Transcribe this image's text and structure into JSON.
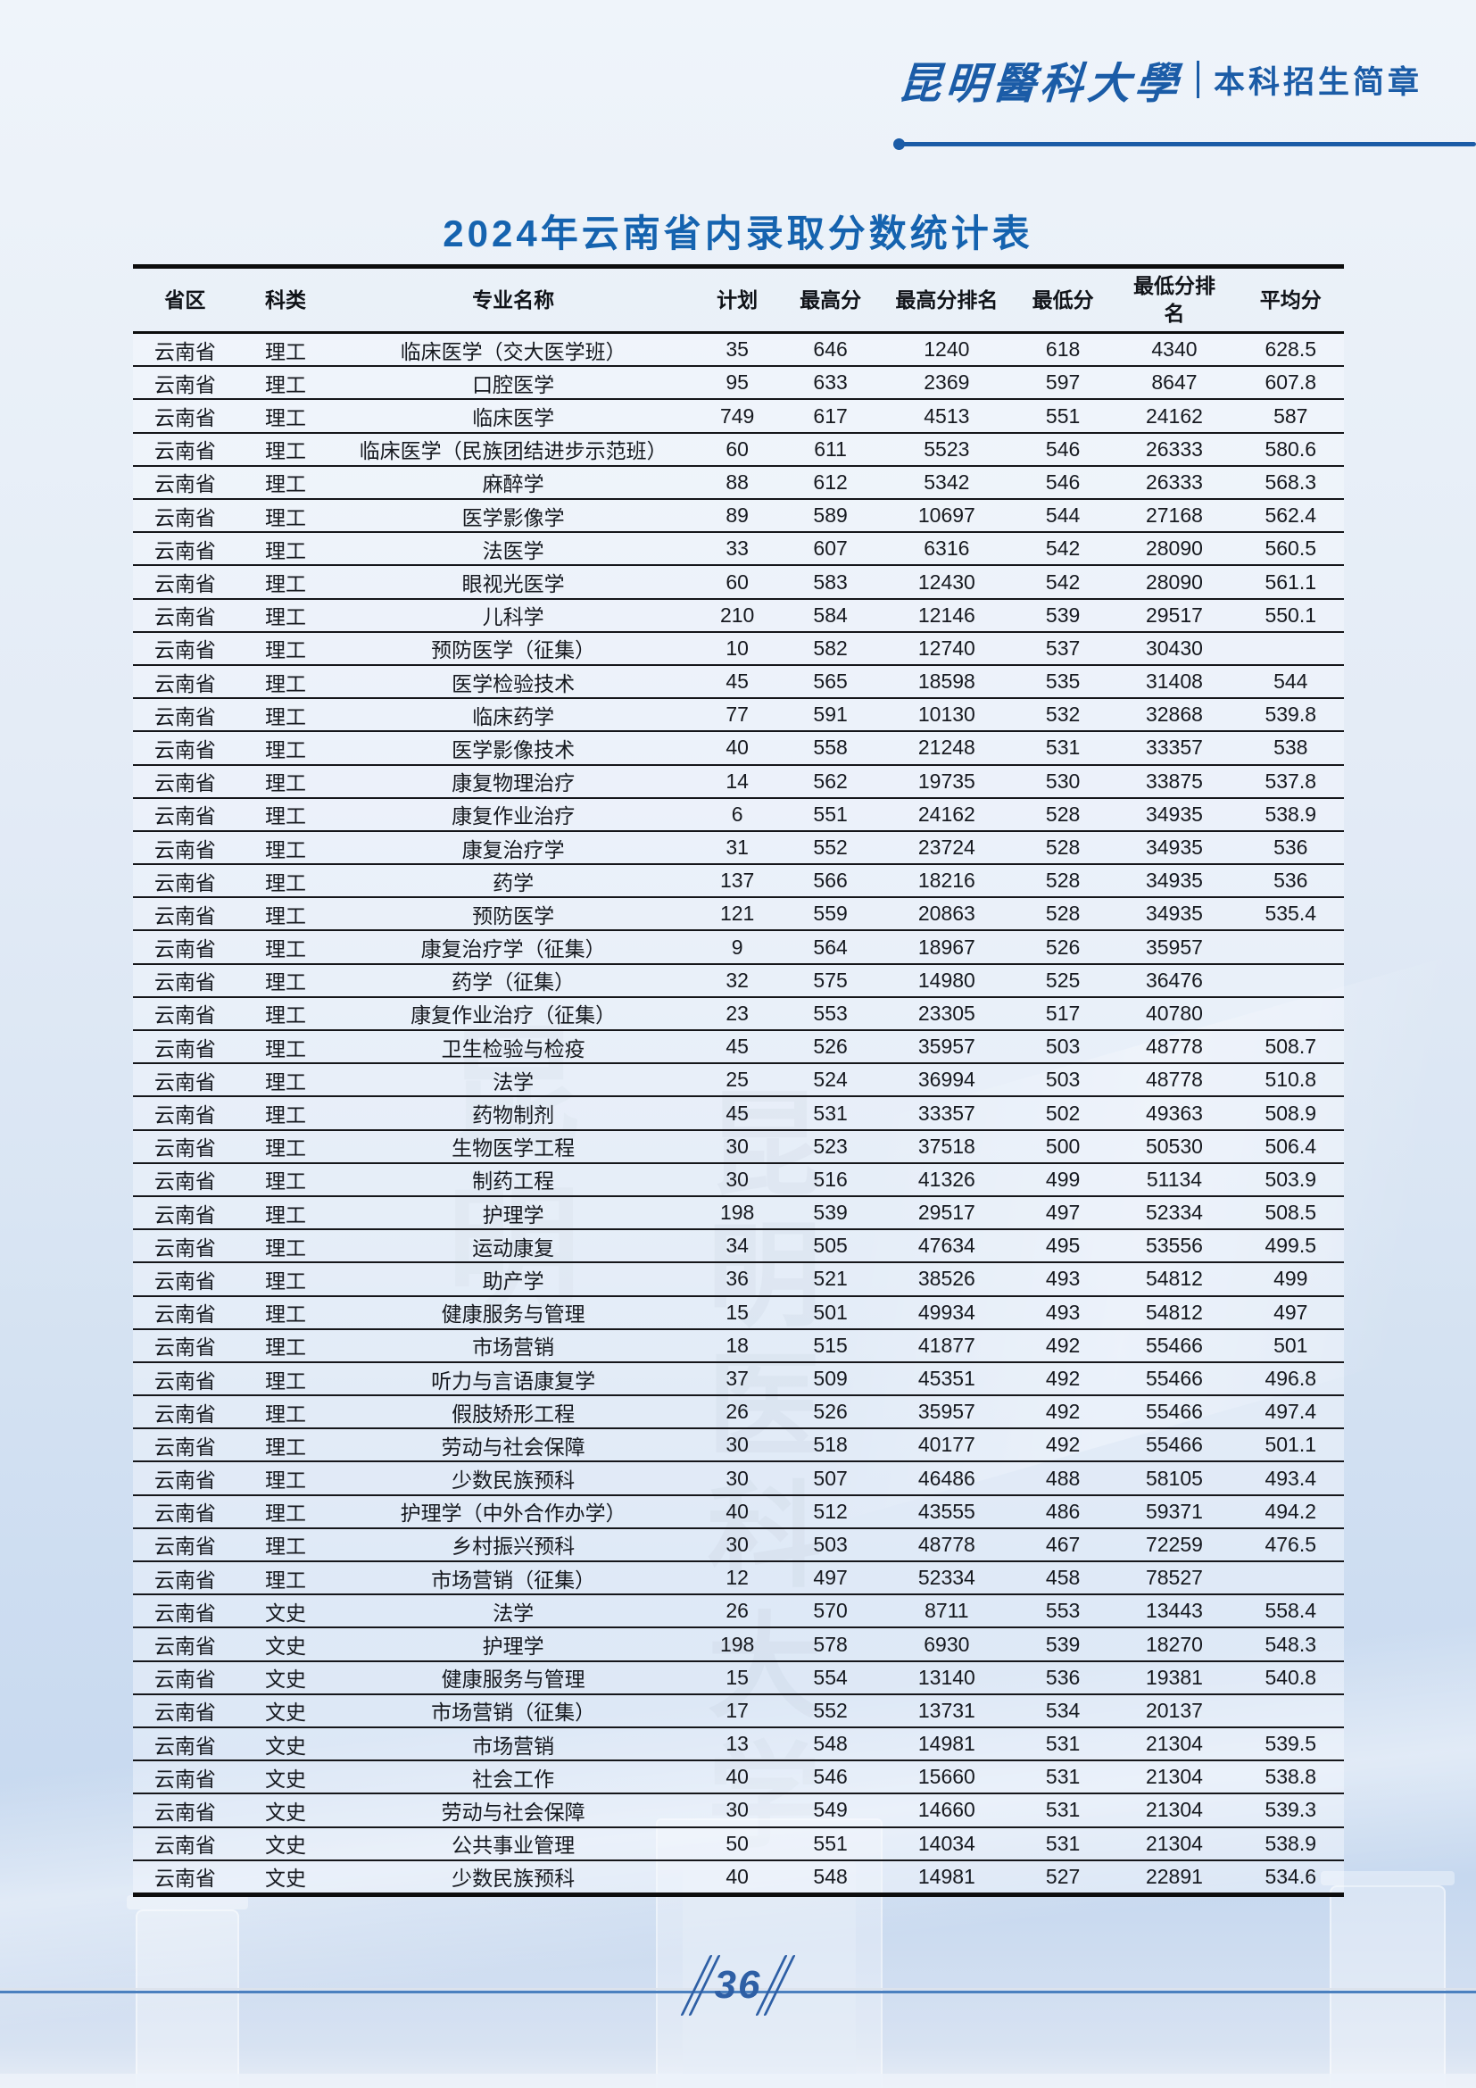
{
  "header": {
    "university_name": "昆明醫科大學",
    "brochure_label": "本科招生简章"
  },
  "title": "2024年云南省内录取分数统计表",
  "watermark": {
    "main_text": "昆明医科大学",
    "side_text": "昆明"
  },
  "colors": {
    "brand_blue": "#1b5ca7",
    "title_blue": "#1563af",
    "footer_line_blue": "#4b80bf",
    "table_border_black": "#0d0d0d"
  },
  "table": {
    "columns": [
      "省区",
      "科类",
      "专业名称",
      "计划",
      "最高分",
      "最高分排名",
      "最低分",
      "最低分排名",
      "平均分"
    ],
    "rows": [
      [
        "云南省",
        "理工",
        "临床医学（交大医学班）",
        "35",
        "646",
        "1240",
        "618",
        "4340",
        "628.5"
      ],
      [
        "云南省",
        "理工",
        "口腔医学",
        "95",
        "633",
        "2369",
        "597",
        "8647",
        "607.8"
      ],
      [
        "云南省",
        "理工",
        "临床医学",
        "749",
        "617",
        "4513",
        "551",
        "24162",
        "587"
      ],
      [
        "云南省",
        "理工",
        "临床医学（民族团结进步示范班）",
        "60",
        "611",
        "5523",
        "546",
        "26333",
        "580.6"
      ],
      [
        "云南省",
        "理工",
        "麻醉学",
        "88",
        "612",
        "5342",
        "546",
        "26333",
        "568.3"
      ],
      [
        "云南省",
        "理工",
        "医学影像学",
        "89",
        "589",
        "10697",
        "544",
        "27168",
        "562.4"
      ],
      [
        "云南省",
        "理工",
        "法医学",
        "33",
        "607",
        "6316",
        "542",
        "28090",
        "560.5"
      ],
      [
        "云南省",
        "理工",
        "眼视光医学",
        "60",
        "583",
        "12430",
        "542",
        "28090",
        "561.1"
      ],
      [
        "云南省",
        "理工",
        "儿科学",
        "210",
        "584",
        "12146",
        "539",
        "29517",
        "550.1"
      ],
      [
        "云南省",
        "理工",
        "预防医学（征集）",
        "10",
        "582",
        "12740",
        "537",
        "30430",
        ""
      ],
      [
        "云南省",
        "理工",
        "医学检验技术",
        "45",
        "565",
        "18598",
        "535",
        "31408",
        "544"
      ],
      [
        "云南省",
        "理工",
        "临床药学",
        "77",
        "591",
        "10130",
        "532",
        "32868",
        "539.8"
      ],
      [
        "云南省",
        "理工",
        "医学影像技术",
        "40",
        "558",
        "21248",
        "531",
        "33357",
        "538"
      ],
      [
        "云南省",
        "理工",
        "康复物理治疗",
        "14",
        "562",
        "19735",
        "530",
        "33875",
        "537.8"
      ],
      [
        "云南省",
        "理工",
        "康复作业治疗",
        "6",
        "551",
        "24162",
        "528",
        "34935",
        "538.9"
      ],
      [
        "云南省",
        "理工",
        "康复治疗学",
        "31",
        "552",
        "23724",
        "528",
        "34935",
        "536"
      ],
      [
        "云南省",
        "理工",
        "药学",
        "137",
        "566",
        "18216",
        "528",
        "34935",
        "536"
      ],
      [
        "云南省",
        "理工",
        "预防医学",
        "121",
        "559",
        "20863",
        "528",
        "34935",
        "535.4"
      ],
      [
        "云南省",
        "理工",
        "康复治疗学（征集）",
        "9",
        "564",
        "18967",
        "526",
        "35957",
        ""
      ],
      [
        "云南省",
        "理工",
        "药学（征集）",
        "32",
        "575",
        "14980",
        "525",
        "36476",
        ""
      ],
      [
        "云南省",
        "理工",
        "康复作业治疗（征集）",
        "23",
        "553",
        "23305",
        "517",
        "40780",
        ""
      ],
      [
        "云南省",
        "理工",
        "卫生检验与检疫",
        "45",
        "526",
        "35957",
        "503",
        "48778",
        "508.7"
      ],
      [
        "云南省",
        "理工",
        "法学",
        "25",
        "524",
        "36994",
        "503",
        "48778",
        "510.8"
      ],
      [
        "云南省",
        "理工",
        "药物制剂",
        "45",
        "531",
        "33357",
        "502",
        "49363",
        "508.9"
      ],
      [
        "云南省",
        "理工",
        "生物医学工程",
        "30",
        "523",
        "37518",
        "500",
        "50530",
        "506.4"
      ],
      [
        "云南省",
        "理工",
        "制药工程",
        "30",
        "516",
        "41326",
        "499",
        "51134",
        "503.9"
      ],
      [
        "云南省",
        "理工",
        "护理学",
        "198",
        "539",
        "29517",
        "497",
        "52334",
        "508.5"
      ],
      [
        "云南省",
        "理工",
        "运动康复",
        "34",
        "505",
        "47634",
        "495",
        "53556",
        "499.5"
      ],
      [
        "云南省",
        "理工",
        "助产学",
        "36",
        "521",
        "38526",
        "493",
        "54812",
        "499"
      ],
      [
        "云南省",
        "理工",
        "健康服务与管理",
        "15",
        "501",
        "49934",
        "493",
        "54812",
        "497"
      ],
      [
        "云南省",
        "理工",
        "市场营销",
        "18",
        "515",
        "41877",
        "492",
        "55466",
        "501"
      ],
      [
        "云南省",
        "理工",
        "听力与言语康复学",
        "37",
        "509",
        "45351",
        "492",
        "55466",
        "496.8"
      ],
      [
        "云南省",
        "理工",
        "假肢矫形工程",
        "26",
        "526",
        "35957",
        "492",
        "55466",
        "497.4"
      ],
      [
        "云南省",
        "理工",
        "劳动与社会保障",
        "30",
        "518",
        "40177",
        "492",
        "55466",
        "501.1"
      ],
      [
        "云南省",
        "理工",
        "少数民族预科",
        "30",
        "507",
        "46486",
        "488",
        "58105",
        "493.4"
      ],
      [
        "云南省",
        "理工",
        "护理学（中外合作办学）",
        "40",
        "512",
        "43555",
        "486",
        "59371",
        "494.2"
      ],
      [
        "云南省",
        "理工",
        "乡村振兴预科",
        "30",
        "503",
        "48778",
        "467",
        "72259",
        "476.5"
      ],
      [
        "云南省",
        "理工",
        "市场营销（征集）",
        "12",
        "497",
        "52334",
        "458",
        "78527",
        ""
      ],
      [
        "云南省",
        "文史",
        "法学",
        "26",
        "570",
        "8711",
        "553",
        "13443",
        "558.4"
      ],
      [
        "云南省",
        "文史",
        "护理学",
        "198",
        "578",
        "6930",
        "539",
        "18270",
        "548.3"
      ],
      [
        "云南省",
        "文史",
        "健康服务与管理",
        "15",
        "554",
        "13140",
        "536",
        "19381",
        "540.8"
      ],
      [
        "云南省",
        "文史",
        "市场营销（征集）",
        "17",
        "552",
        "13731",
        "534",
        "20137",
        ""
      ],
      [
        "云南省",
        "文史",
        "市场营销",
        "13",
        "548",
        "14981",
        "531",
        "21304",
        "539.5"
      ],
      [
        "云南省",
        "文史",
        "社会工作",
        "40",
        "546",
        "15660",
        "531",
        "21304",
        "538.8"
      ],
      [
        "云南省",
        "文史",
        "劳动与社会保障",
        "30",
        "549",
        "14660",
        "531",
        "21304",
        "539.3"
      ],
      [
        "云南省",
        "文史",
        "公共事业管理",
        "50",
        "551",
        "14034",
        "531",
        "21304",
        "538.9"
      ],
      [
        "云南省",
        "文史",
        "少数民族预科",
        "40",
        "548",
        "14981",
        "527",
        "22891",
        "534.6"
      ]
    ]
  },
  "footer": {
    "page_number": "36"
  }
}
